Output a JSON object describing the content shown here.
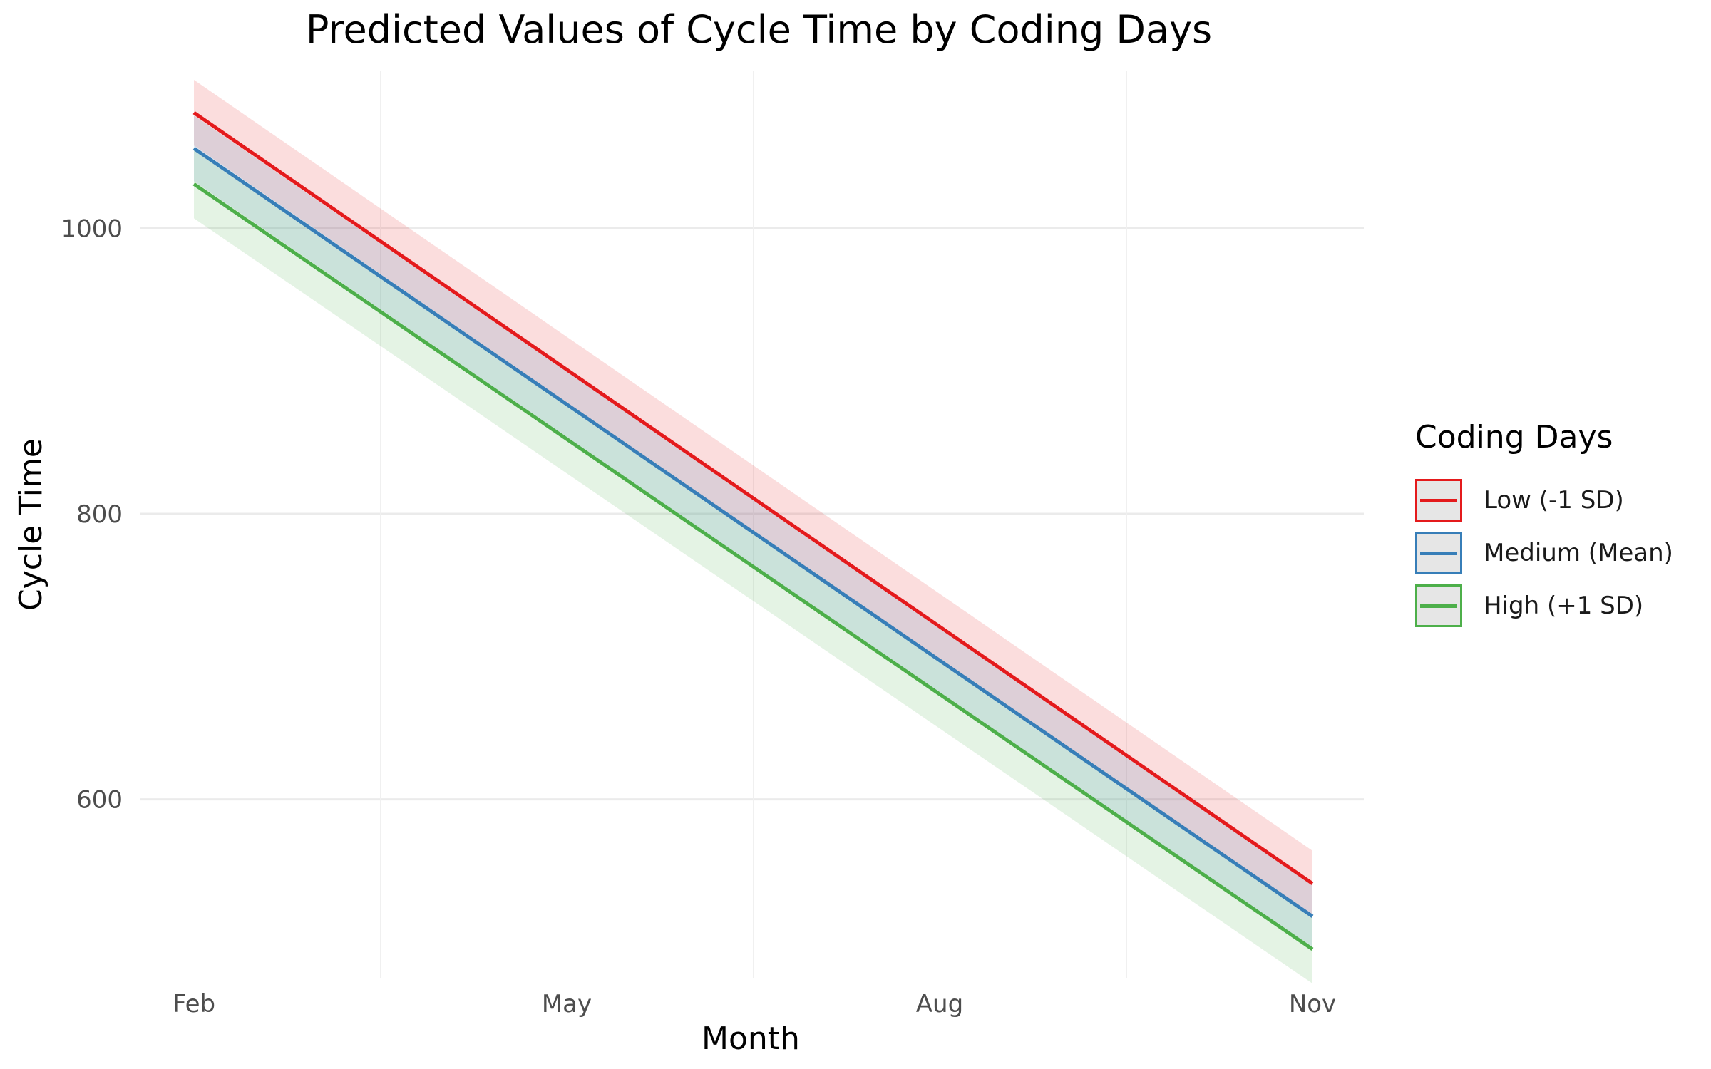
{
  "chart_data": {
    "type": "line",
    "title": "Predicted Values of Cycle Time by Coding Days",
    "xlabel": "Month",
    "ylabel": "Cycle Time",
    "x_ticks": [
      "Feb",
      "May",
      "Aug",
      "Nov"
    ],
    "x": [
      "Feb",
      "Nov"
    ],
    "ylim": [
      475,
      1110
    ],
    "y_ticks": [
      600,
      800,
      1000
    ],
    "grid": true,
    "legend_title": "Coding Days",
    "legend_position": "right",
    "series": [
      {
        "name": "Low (-1 SD)",
        "color": "#e41a1c",
        "fill": "#fbb4b5",
        "values": [
          1081,
          541
        ],
        "lower": [
          1058,
          518
        ],
        "upper": [
          1104,
          564
        ]
      },
      {
        "name": "Medium (Mean)",
        "color": "#377eb8",
        "fill": "#b3cde3",
        "values": [
          1056,
          518
        ],
        "lower": [
          1033,
          495
        ],
        "upper": [
          1079,
          541
        ]
      },
      {
        "name": "High (+1 SD)",
        "color": "#4daf4a",
        "fill": "#c7e9c0",
        "values": [
          1031,
          495
        ],
        "lower": [
          1007,
          471
        ],
        "upper": [
          1055,
          519
        ]
      }
    ]
  }
}
